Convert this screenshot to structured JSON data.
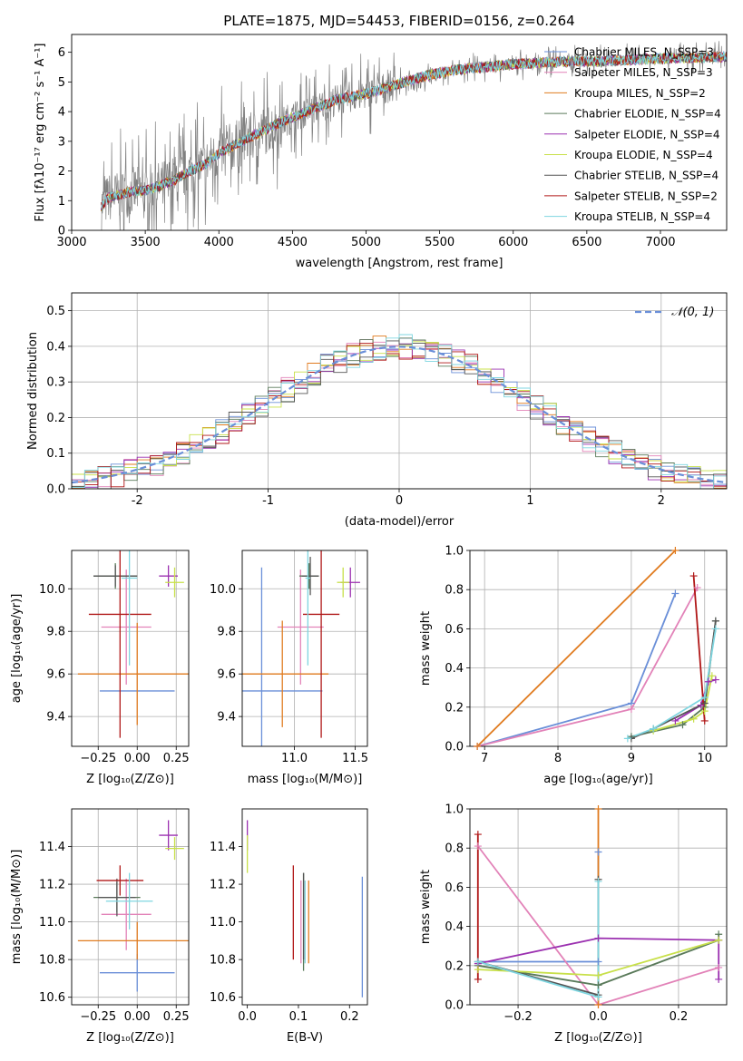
{
  "colors": {
    "chabrier_miles": "#6a8fd8",
    "salpeter_miles": "#e282b8",
    "kroupa_miles": "#e07b1f",
    "chabrier_elodie": "#5a7a5a",
    "salpeter_elodie": "#9b30b0",
    "kroupa_elodie": "#c8e04a",
    "chabrier_stelib": "#555555",
    "salpeter_stelib": "#b01818",
    "kroupa_stelib": "#7fd6e0",
    "data": "#808080",
    "grid": "#b0b0b0"
  },
  "chart_data": [
    {
      "id": "spectrum",
      "type": "line",
      "title": "PLATE=1875, MJD=54453, FIBERID=0156, z=0.264",
      "xlabel": "wavelength [Angstrom, rest frame]",
      "ylabel": "Flux [fλ10⁻¹⁷ erg cm⁻² s⁻¹ A⁻¹]",
      "xlim": [
        3000,
        7450
      ],
      "ylim": [
        0,
        6.6
      ],
      "xticks": [
        3000,
        3500,
        4000,
        4500,
        5000,
        5500,
        6000,
        6500,
        7000
      ],
      "yticks": [
        0,
        1,
        2,
        3,
        4,
        5,
        6
      ],
      "grid": false,
      "legend_position": "lower-right",
      "legend": [
        "Chabrier MILES, N_SSP=3",
        "Salpeter MILES, N_SSP=3",
        "Kroupa MILES, N_SSP=2",
        "Chabrier ELODIE, N_SSP=4",
        "Salpeter ELODIE, N_SSP=4",
        "Kroupa ELODIE, N_SSP=4",
        "Chabrier STELIB, N_SSP=4",
        "Salpeter STELIB, N_SSP=2",
        "Kroupa STELIB, N_SSP=4"
      ],
      "continuum": {
        "x": [
          3200,
          3250,
          3400,
          3500,
          3600,
          3700,
          3800,
          3900,
          4000,
          4200,
          4400,
          4600,
          4800,
          5000,
          5200,
          5400,
          5600,
          5800,
          6000,
          6200,
          6400,
          6600,
          6800,
          7000,
          7200,
          7450
        ],
        "y": [
          0.8,
          1.1,
          1.3,
          1.35,
          1.5,
          1.7,
          2.0,
          2.2,
          2.6,
          3.1,
          3.6,
          4.0,
          4.4,
          4.6,
          4.9,
          5.2,
          5.4,
          5.5,
          5.6,
          5.65,
          5.7,
          5.7,
          5.75,
          5.8,
          5.8,
          5.85
        ]
      }
    },
    {
      "id": "residuals",
      "type": "histogram",
      "xlabel": "(data-model)/error",
      "ylabel": "Normed distribution",
      "xlim": [
        -2.5,
        2.5
      ],
      "ylim": [
        0,
        0.55
      ],
      "xticks": [
        -2,
        -1,
        0,
        1,
        2
      ],
      "yticks": [
        0.0,
        0.1,
        0.2,
        0.3,
        0.4,
        0.5
      ],
      "grid": true,
      "legend_position": "upper-right",
      "legend": [
        "𝒩(0, 1)"
      ],
      "bin_width": 0.1,
      "bin_start": -2.5
    },
    {
      "id": "age_vs_Z",
      "type": "errorbar",
      "xlabel": "Z [log₁₀(Z/Z⊙)]",
      "ylabel": "age [log₁₀(age/yr)]",
      "xlim": [
        -0.42,
        0.33
      ],
      "ylim": [
        9.26,
        10.18
      ],
      "xticks": [
        -0.25,
        0.0,
        0.25
      ],
      "xtick_labels": [
        "−0.25",
        "0.00",
        "0.25"
      ],
      "yticks": [
        9.4,
        9.6,
        9.8,
        10.0
      ],
      "grid": true,
      "points": [
        {
          "s": "chabrier_miles",
          "x": 0.0,
          "xe": 0.24,
          "y": 9.52,
          "ye": 0.0
        },
        {
          "s": "salpeter_miles",
          "x": -0.07,
          "xe": 0.16,
          "y": 9.82,
          "ye": 0.27
        },
        {
          "s": "kroupa_miles",
          "x": 0.0,
          "xe": 0.38,
          "y": 9.6,
          "ye": 0.24
        },
        {
          "s": "chabrier_elodie",
          "x": -0.14,
          "xe": 0.14,
          "y": 10.06,
          "ye": 0.06
        },
        {
          "s": "salpeter_elodie",
          "x": 0.2,
          "xe": 0.06,
          "y": 10.06,
          "ye": 0.05
        },
        {
          "s": "kroupa_elodie",
          "x": 0.24,
          "xe": 0.06,
          "y": 10.03,
          "ye": 0.07
        },
        {
          "s": "chabrier_stelib",
          "x": -0.14,
          "xe": 0.14,
          "y": 10.06,
          "ye": 0.05
        },
        {
          "s": "salpeter_stelib",
          "x": -0.11,
          "xe": 0.2,
          "y": 9.88,
          "ye": 0.58
        },
        {
          "s": "kroupa_stelib",
          "x": -0.05,
          "xe": 0.05,
          "y": 10.05,
          "ye": 0.41
        }
      ]
    },
    {
      "id": "age_vs_mass",
      "type": "errorbar",
      "xlabel": "mass [log₁₀(M/M⊙)]",
      "ylabel": "",
      "xlim": [
        10.57,
        11.6
      ],
      "ylim": [
        9.26,
        10.18
      ],
      "xticks": [
        11.0,
        11.5
      ],
      "xtick_labels": [
        "11.0",
        "11.5"
      ],
      "yticks": [
        9.4,
        9.6,
        9.8,
        10.0
      ],
      "grid": true,
      "points": [
        {
          "s": "chabrier_miles",
          "x": 10.73,
          "xe": 0.5,
          "y": 9.52,
          "ye": 0.58
        },
        {
          "s": "salpeter_miles",
          "x": 11.05,
          "xe": 0.19,
          "y": 9.82,
          "ye": 0.27
        },
        {
          "s": "kroupa_miles",
          "x": 10.9,
          "xe": 0.38,
          "y": 9.6,
          "ye": 0.25
        },
        {
          "s": "chabrier_elodie",
          "x": 11.12,
          "xe": 0.08,
          "y": 10.06,
          "ye": 0.06
        },
        {
          "s": "salpeter_elodie",
          "x": 11.46,
          "xe": 0.08,
          "y": 10.03,
          "ye": 0.07
        },
        {
          "s": "kroupa_elodie",
          "x": 11.4,
          "xe": 0.05,
          "y": 10.03,
          "ye": 0.07
        },
        {
          "s": "chabrier_stelib",
          "x": 11.13,
          "xe": 0.07,
          "y": 10.06,
          "ye": 0.09
        },
        {
          "s": "salpeter_stelib",
          "x": 11.22,
          "xe": 0.15,
          "y": 9.88,
          "ye": 0.58
        },
        {
          "s": "kroupa_stelib",
          "x": 11.11,
          "xe": 0.02,
          "y": 10.05,
          "ye": 0.41
        }
      ]
    },
    {
      "id": "massweight_vs_age",
      "type": "line",
      "xlabel": "age [log₁₀(age/yr)]",
      "ylabel": "mass weight",
      "xlim": [
        6.8,
        10.3
      ],
      "ylim": [
        0,
        1
      ],
      "xticks": [
        7,
        8,
        9,
        10
      ],
      "yticks": [
        0.0,
        0.2,
        0.4,
        0.6,
        0.8,
        1.0
      ],
      "grid": true,
      "series": [
        {
          "s": "chabrier_miles",
          "x": [
            6.9,
            9.0,
            9.6
          ],
          "y": [
            0.0,
            0.22,
            0.78
          ]
        },
        {
          "s": "salpeter_miles",
          "x": [
            6.9,
            9.0,
            9.9
          ],
          "y": [
            0.0,
            0.19,
            0.81
          ]
        },
        {
          "s": "kroupa_miles",
          "x": [
            6.9,
            9.6
          ],
          "y": [
            0.0,
            1.0
          ]
        },
        {
          "s": "chabrier_elodie",
          "x": [
            9.0,
            9.7,
            10.0,
            10.15
          ],
          "y": [
            0.05,
            0.11,
            0.2,
            0.64
          ]
        },
        {
          "s": "salpeter_elodie",
          "x": [
            9.6,
            9.95,
            10.05,
            10.15
          ],
          "y": [
            0.13,
            0.21,
            0.33,
            0.34
          ]
        },
        {
          "s": "kroupa_elodie",
          "x": [
            9.3,
            9.85,
            10.0,
            10.1
          ],
          "y": [
            0.08,
            0.14,
            0.18,
            0.36
          ]
        },
        {
          "s": "chabrier_stelib",
          "x": [
            9.0,
            9.3,
            10.0,
            10.15
          ],
          "y": [
            0.04,
            0.09,
            0.22,
            0.64
          ]
        },
        {
          "s": "salpeter_stelib",
          "x": [
            9.85,
            10.0
          ],
          "y": [
            0.87,
            0.13
          ]
        },
        {
          "s": "kroupa_stelib",
          "x": [
            8.95,
            9.3,
            10.0,
            10.15
          ],
          "y": [
            0.04,
            0.09,
            0.25,
            0.6
          ]
        }
      ]
    },
    {
      "id": "mass_vs_Z",
      "type": "errorbar",
      "xlabel": "Z [log₁₀(Z/Z⊙)]",
      "ylabel": "mass [log₁₀(M/M⊙)]",
      "xlim": [
        -0.42,
        0.33
      ],
      "ylim": [
        10.56,
        11.6
      ],
      "xticks": [
        -0.25,
        0.0,
        0.25
      ],
      "xtick_labels": [
        "−0.25",
        "0.00",
        "0.25"
      ],
      "yticks": [
        10.6,
        10.8,
        11.0,
        11.2,
        11.4
      ],
      "grid": true,
      "points": [
        {
          "s": "chabrier_miles",
          "x": 0.0,
          "xe": 0.24,
          "y": 10.73,
          "ye": 0.1
        },
        {
          "s": "salpeter_miles",
          "x": -0.07,
          "xe": 0.16,
          "y": 11.04,
          "ye": 0.19
        },
        {
          "s": "kroupa_miles",
          "x": 0.0,
          "xe": 0.38,
          "y": 10.9,
          "ye": 0.1
        },
        {
          "s": "chabrier_elodie",
          "x": -0.13,
          "xe": 0.15,
          "y": 11.13,
          "ye": 0.08
        },
        {
          "s": "salpeter_elodie",
          "x": 0.2,
          "xe": 0.06,
          "y": 11.46,
          "ye": 0.08
        },
        {
          "s": "kroupa_elodie",
          "x": 0.24,
          "xe": 0.06,
          "y": 11.39,
          "ye": 0.06
        },
        {
          "s": "chabrier_stelib",
          "x": -0.13,
          "xe": 0.12,
          "y": 11.13,
          "ye": 0.1
        },
        {
          "s": "salpeter_stelib",
          "x": -0.11,
          "xe": 0.15,
          "y": 11.22,
          "ye": 0.08
        },
        {
          "s": "kroupa_stelib",
          "x": -0.05,
          "xe": 0.15,
          "y": 11.11,
          "ye": 0.15
        }
      ]
    },
    {
      "id": "mass_vs_ebv",
      "type": "errorbar",
      "xlabel": "E(B-V)",
      "ylabel": "",
      "xlim": [
        -0.01,
        0.235
      ],
      "ylim": [
        10.56,
        11.6
      ],
      "xticks": [
        0.0,
        0.1,
        0.2
      ],
      "xtick_labels": [
        "0.0",
        "0.1",
        "0.2"
      ],
      "yticks": [
        10.6,
        10.8,
        11.0,
        11.2,
        11.4
      ],
      "grid": false,
      "points": [
        {
          "s": "chabrier_miles",
          "x": 0.225,
          "xe": 0.0,
          "y": 10.92,
          "ye": 0.32
        },
        {
          "s": "salpeter_miles",
          "x": 0.105,
          "xe": 0.0,
          "y": 11.0,
          "ye": 0.22
        },
        {
          "s": "kroupa_miles",
          "x": 0.12,
          "xe": 0.0,
          "y": 11.0,
          "ye": 0.22
        },
        {
          "s": "chabrier_elodie",
          "x": 0.11,
          "xe": 0.0,
          "y": 11.0,
          "ye": 0.26
        },
        {
          "s": "salpeter_elodie",
          "x": 0.0,
          "xe": 0.0,
          "y": 11.46,
          "ye": 0.08
        },
        {
          "s": "kroupa_elodie",
          "x": 0.0,
          "xe": 0.0,
          "y": 11.36,
          "ye": 0.1
        },
        {
          "s": "chabrier_stelib",
          "x": 0.11,
          "xe": 0.0,
          "y": 11.03,
          "ye": 0.23
        },
        {
          "s": "salpeter_stelib",
          "x": 0.09,
          "xe": 0.0,
          "y": 11.05,
          "ye": 0.25
        },
        {
          "s": "kroupa_stelib",
          "x": 0.113,
          "xe": 0.0,
          "y": 11.0,
          "ye": 0.22
        }
      ]
    },
    {
      "id": "massweight_vs_Z",
      "type": "line",
      "xlabel": "Z [log₁₀(Z/Z⊙)]",
      "ylabel": "mass weight",
      "xlim": [
        -0.32,
        0.32
      ],
      "ylim": [
        0,
        1
      ],
      "xticks": [
        -0.2,
        0.0,
        0.2
      ],
      "xtick_labels": [
        "−0.2",
        "0.0",
        "0.2"
      ],
      "yticks": [
        0.0,
        0.2,
        0.4,
        0.6,
        0.8,
        1.0
      ],
      "grid": true,
      "series": [
        {
          "s": "chabrier_miles",
          "x": [
            -0.3,
            0.0,
            0.0
          ],
          "y": [
            0.22,
            0.22,
            0.78
          ]
        },
        {
          "s": "salpeter_miles",
          "x": [
            -0.3,
            0.0,
            0.3
          ],
          "y": [
            0.81,
            0.0,
            0.19
          ]
        },
        {
          "s": "kroupa_miles",
          "x": [
            0.0,
            0.0
          ],
          "y": [
            0.0,
            1.0
          ]
        },
        {
          "s": "chabrier_elodie",
          "x": [
            -0.3,
            0.0,
            0.3,
            0.3
          ],
          "y": [
            0.2,
            0.1,
            0.33,
            0.36
          ]
        },
        {
          "s": "salpeter_elodie",
          "x": [
            -0.3,
            0.0,
            0.3,
            0.3
          ],
          "y": [
            0.21,
            0.34,
            0.33,
            0.13
          ]
        },
        {
          "s": "kroupa_elodie",
          "x": [
            -0.3,
            0.0,
            0.3
          ],
          "y": [
            0.18,
            0.15,
            0.33
          ]
        },
        {
          "s": "chabrier_stelib",
          "x": [
            -0.3,
            0.0,
            0.0
          ],
          "y": [
            0.22,
            0.05,
            0.64
          ]
        },
        {
          "s": "salpeter_stelib",
          "x": [
            -0.3,
            -0.3
          ],
          "y": [
            0.87,
            0.13
          ]
        },
        {
          "s": "kroupa_stelib",
          "x": [
            -0.3,
            0.0,
            0.0
          ],
          "y": [
            0.22,
            0.04,
            0.63
          ]
        }
      ]
    }
  ]
}
